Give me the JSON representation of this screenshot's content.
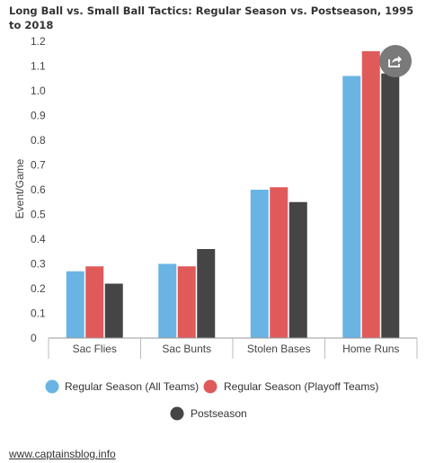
{
  "chart_data": {
    "type": "bar",
    "title": "Long Ball vs. Small Ball Tactics: Regular Season vs. Postseason, 1995 to 2018",
    "ylabel": "Event/Game",
    "xlabel": "",
    "ylim": [
      0,
      1.2
    ],
    "yticks": [
      "0",
      "0.1",
      "0.2",
      "0.3",
      "0.4",
      "0.5",
      "0.6",
      "0.7",
      "0.8",
      "0.9",
      "1.0",
      "1.1",
      "1.2"
    ],
    "categories": [
      "Sac Flies",
      "Sac Bunts",
      "Stolen Bases",
      "Home Runs"
    ],
    "series": [
      {
        "name": "Regular Season (All Teams)",
        "color": "#6ab4e4",
        "values": [
          0.27,
          0.3,
          0.6,
          1.06
        ]
      },
      {
        "name": "Regular Season (Playoff Teams)",
        "color": "#e05a5a",
        "values": [
          0.29,
          0.29,
          0.61,
          1.16
        ]
      },
      {
        "name": "Postseason",
        "color": "#454545",
        "values": [
          0.22,
          0.36,
          0.55,
          1.07
        ]
      }
    ],
    "grid": false,
    "legend_position": "bottom"
  },
  "source": "www.captainsblog.info",
  "share_icon": "share-icon"
}
